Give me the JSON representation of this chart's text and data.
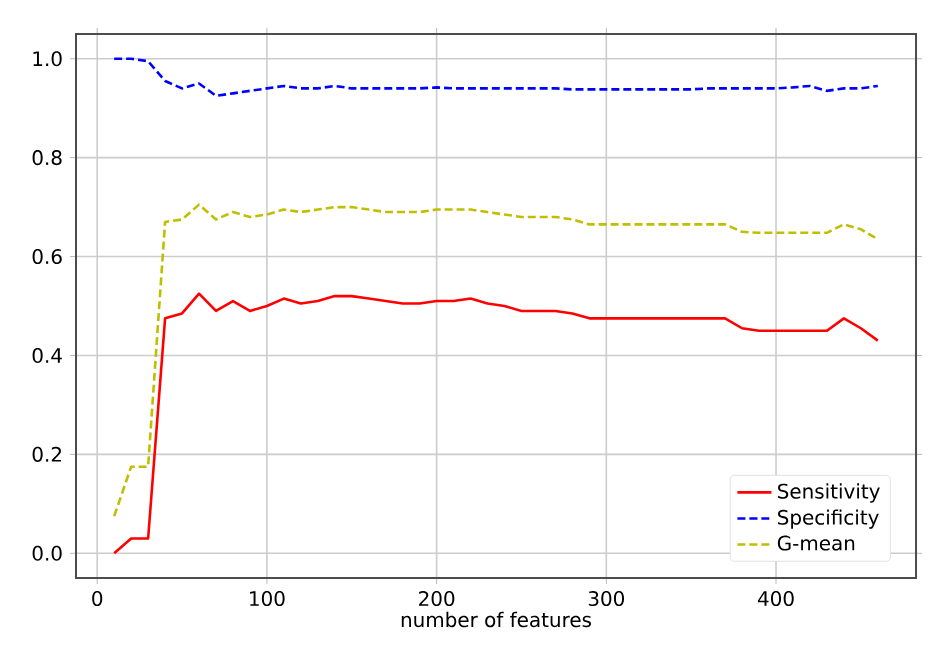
{
  "chart_data": {
    "type": "line",
    "xlabel": "number of features",
    "x": [
      10,
      20,
      30,
      40,
      50,
      60,
      70,
      80,
      90,
      100,
      110,
      120,
      130,
      140,
      150,
      160,
      170,
      180,
      190,
      200,
      210,
      220,
      230,
      240,
      250,
      260,
      270,
      280,
      290,
      300,
      310,
      320,
      330,
      340,
      350,
      360,
      370,
      380,
      390,
      400,
      410,
      420,
      430,
      440,
      450,
      460
    ],
    "series": [
      {
        "name": "Sensitivity",
        "color": "#ff0000",
        "line_style": "solid",
        "values": [
          0.0,
          0.03,
          0.03,
          0.475,
          0.485,
          0.525,
          0.49,
          0.51,
          0.49,
          0.5,
          0.515,
          0.505,
          0.51,
          0.52,
          0.52,
          0.515,
          0.51,
          0.505,
          0.505,
          0.51,
          0.51,
          0.515,
          0.505,
          0.5,
          0.49,
          0.49,
          0.49,
          0.485,
          0.475,
          0.475,
          0.475,
          0.475,
          0.475,
          0.475,
          0.475,
          0.475,
          0.475,
          0.455,
          0.45,
          0.45,
          0.45,
          0.45,
          0.45,
          0.475,
          0.455,
          0.43
        ]
      },
      {
        "name": "Specificity",
        "color": "#0000ff",
        "line_style": "dashed",
        "values": [
          1.0,
          1.0,
          0.995,
          0.955,
          0.94,
          0.95,
          0.925,
          0.93,
          0.935,
          0.94,
          0.945,
          0.94,
          0.94,
          0.945,
          0.94,
          0.94,
          0.94,
          0.94,
          0.94,
          0.942,
          0.94,
          0.94,
          0.94,
          0.94,
          0.94,
          0.94,
          0.94,
          0.938,
          0.938,
          0.938,
          0.938,
          0.938,
          0.938,
          0.938,
          0.938,
          0.94,
          0.94,
          0.94,
          0.94,
          0.94,
          0.942,
          0.945,
          0.935,
          0.94,
          0.94,
          0.945
        ]
      },
      {
        "name": "G-mean",
        "color": "#bfbf00",
        "line_style": "dashed",
        "values": [
          0.075,
          0.175,
          0.175,
          0.67,
          0.675,
          0.705,
          0.675,
          0.69,
          0.68,
          0.685,
          0.695,
          0.69,
          0.695,
          0.7,
          0.7,
          0.695,
          0.69,
          0.69,
          0.69,
          0.695,
          0.695,
          0.695,
          0.69,
          0.685,
          0.68,
          0.68,
          0.68,
          0.675,
          0.665,
          0.665,
          0.665,
          0.665,
          0.665,
          0.665,
          0.665,
          0.665,
          0.665,
          0.65,
          0.648,
          0.648,
          0.648,
          0.648,
          0.648,
          0.665,
          0.655,
          0.635
        ]
      }
    ],
    "xlim": [
      -12.5,
      482.5
    ],
    "ylim": [
      -0.05,
      1.05
    ],
    "xticks": [
      0,
      100,
      200,
      300,
      400
    ],
    "yticks": [
      {
        "value": 0.0,
        "label": "0.0"
      },
      {
        "value": 0.2,
        "label": "0.2"
      },
      {
        "value": 0.4,
        "label": "0.4"
      },
      {
        "value": 0.6,
        "label": "0.6"
      },
      {
        "value": 0.8,
        "label": "0.8"
      },
      {
        "value": 1.0,
        "label": "1.0"
      }
    ],
    "grid": true,
    "legend": "bottom right",
    "marker": "none"
  }
}
